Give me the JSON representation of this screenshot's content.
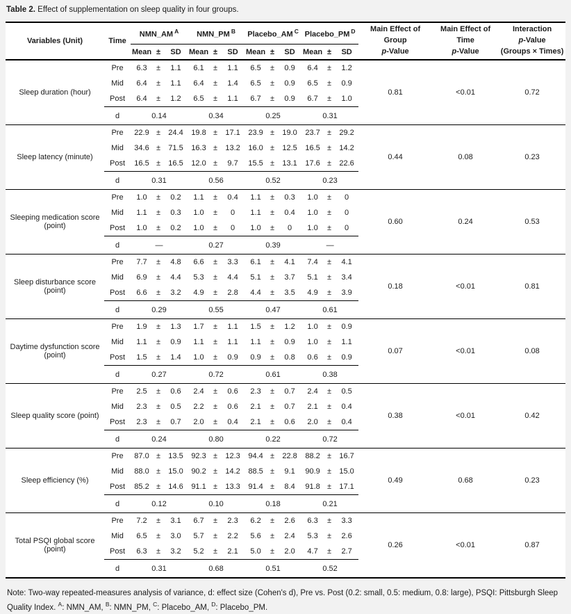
{
  "page": {
    "caption_label": "Table 2.",
    "caption_text": "Effect of supplementation on sleep quality in four groups."
  },
  "table": {
    "pm_symbol": "±",
    "d_label": "d",
    "header": {
      "variables": "Variables (Unit)",
      "time": "Time",
      "groups": [
        {
          "name": "NMN_AM",
          "sup": "A"
        },
        {
          "name": "NMN_PM",
          "sup": "B"
        },
        {
          "name": "Placebo_AM",
          "sup": "C"
        },
        {
          "name": "Placebo_PM",
          "sup": "D"
        }
      ],
      "sub": {
        "mean": "Mean",
        "pm": "±",
        "sd": "SD"
      },
      "stats": [
        {
          "title": "Main Effect of Group",
          "p": "p",
          "suffix": "-Value"
        },
        {
          "title": "Main Effect of Time",
          "p": "p",
          "suffix": "-Value"
        },
        {
          "title": "Interaction",
          "p": "p",
          "suffix": "-Value",
          "note": "(Groups × Times)"
        }
      ]
    },
    "variables": [
      {
        "name": "Sleep duration (hour)",
        "rows": [
          {
            "time": "Pre",
            "values": [
              [
                "6.3",
                "1.1"
              ],
              [
                "6.1",
                "1.1"
              ],
              [
                "6.5",
                "0.9"
              ],
              [
                "6.4",
                "1.2"
              ]
            ]
          },
          {
            "time": "Mid",
            "values": [
              [
                "6.4",
                "1.1"
              ],
              [
                "6.4",
                "1.4"
              ],
              [
                "6.5",
                "0.9"
              ],
              [
                "6.5",
                "0.9"
              ]
            ]
          },
          {
            "time": "Post",
            "values": [
              [
                "6.4",
                "1.2"
              ],
              [
                "6.5",
                "1.1"
              ],
              [
                "6.7",
                "0.9"
              ],
              [
                "6.7",
                "1.0"
              ]
            ]
          }
        ],
        "d": [
          "0.14",
          "0.34",
          "0.25",
          "0.31"
        ],
        "p_group": "0.81",
        "p_time": "<0.01",
        "p_interaction": "0.72"
      },
      {
        "name": "Sleep latency (minute)",
        "rows": [
          {
            "time": "Pre",
            "values": [
              [
                "22.9",
                "24.4"
              ],
              [
                "19.8",
                "17.1"
              ],
              [
                "23.9",
                "19.0"
              ],
              [
                "23.7",
                "29.2"
              ]
            ]
          },
          {
            "time": "Mid",
            "values": [
              [
                "34.6",
                "71.5"
              ],
              [
                "16.3",
                "13.2"
              ],
              [
                "16.0",
                "12.5"
              ],
              [
                "16.5",
                "14.2"
              ]
            ]
          },
          {
            "time": "Post",
            "values": [
              [
                "16.5",
                "16.5"
              ],
              [
                "12.0",
                "9.7"
              ],
              [
                "15.5",
                "13.1"
              ],
              [
                "17.6",
                "22.6"
              ]
            ]
          }
        ],
        "d": [
          "0.31",
          "0.56",
          "0.52",
          "0.23"
        ],
        "p_group": "0.44",
        "p_time": "0.08",
        "p_interaction": "0.23"
      },
      {
        "name": "Sleeping medication score (point)",
        "rows": [
          {
            "time": "Pre",
            "values": [
              [
                "1.0",
                "0.2"
              ],
              [
                "1.1",
                "0.4"
              ],
              [
                "1.1",
                "0.3"
              ],
              [
                "1.0",
                "0"
              ]
            ]
          },
          {
            "time": "Mid",
            "values": [
              [
                "1.1",
                "0.3"
              ],
              [
                "1.0",
                "0"
              ],
              [
                "1.1",
                "0.4"
              ],
              [
                "1.0",
                "0"
              ]
            ]
          },
          {
            "time": "Post",
            "values": [
              [
                "1.0",
                "0.2"
              ],
              [
                "1.0",
                "0"
              ],
              [
                "1.0",
                "0"
              ],
              [
                "1.0",
                "0"
              ]
            ]
          }
        ],
        "d": [
          "—",
          "0.27",
          "0.39",
          "—"
        ],
        "p_group": "0.60",
        "p_time": "0.24",
        "p_interaction": "0.53"
      },
      {
        "name": "Sleep disturbance score (point)",
        "rows": [
          {
            "time": "Pre",
            "values": [
              [
                "7.7",
                "4.8"
              ],
              [
                "6.6",
                "3.3"
              ],
              [
                "6.1",
                "4.1"
              ],
              [
                "7.4",
                "4.1"
              ]
            ]
          },
          {
            "time": "Mid",
            "values": [
              [
                "6.9",
                "4.4"
              ],
              [
                "5.3",
                "4.4"
              ],
              [
                "5.1",
                "3.7"
              ],
              [
                "5.1",
                "3.4"
              ]
            ]
          },
          {
            "time": "Post",
            "values": [
              [
                "6.6",
                "3.2"
              ],
              [
                "4.9",
                "2.8"
              ],
              [
                "4.4",
                "3.5"
              ],
              [
                "4.9",
                "3.9"
              ]
            ]
          }
        ],
        "d": [
          "0.29",
          "0.55",
          "0.47",
          "0.61"
        ],
        "p_group": "0.18",
        "p_time": "<0.01",
        "p_interaction": "0.81"
      },
      {
        "name": "Daytime dysfunction score (point)",
        "rows": [
          {
            "time": "Pre",
            "values": [
              [
                "1.9",
                "1.3"
              ],
              [
                "1.7",
                "1.1"
              ],
              [
                "1.5",
                "1.2"
              ],
              [
                "1.0",
                "0.9"
              ]
            ]
          },
          {
            "time": "Mid",
            "values": [
              [
                "1.1",
                "0.9"
              ],
              [
                "1.1",
                "1.1"
              ],
              [
                "1.1",
                "0.9"
              ],
              [
                "1.0",
                "1.1"
              ]
            ]
          },
          {
            "time": "Post",
            "values": [
              [
                "1.5",
                "1.4"
              ],
              [
                "1.0",
                "0.9"
              ],
              [
                "0.9",
                "0.8"
              ],
              [
                "0.6",
                "0.9"
              ]
            ]
          }
        ],
        "d": [
          "0.27",
          "0.72",
          "0.61",
          "0.38"
        ],
        "p_group": "0.07",
        "p_time": "<0.01",
        "p_interaction": "0.08"
      },
      {
        "name": "Sleep quality score (point)",
        "rows": [
          {
            "time": "Pre",
            "values": [
              [
                "2.5",
                "0.6"
              ],
              [
                "2.4",
                "0.6"
              ],
              [
                "2.3",
                "0.7"
              ],
              [
                "2.4",
                "0.5"
              ]
            ]
          },
          {
            "time": "Mid",
            "values": [
              [
                "2.3",
                "0.5"
              ],
              [
                "2.2",
                "0.6"
              ],
              [
                "2.1",
                "0.7"
              ],
              [
                "2.1",
                "0.4"
              ]
            ]
          },
          {
            "time": "Post",
            "values": [
              [
                "2.3",
                "0.7"
              ],
              [
                "2.0",
                "0.4"
              ],
              [
                "2.1",
                "0.6"
              ],
              [
                "2.0",
                "0.4"
              ]
            ]
          }
        ],
        "d": [
          "0.24",
          "0.80",
          "0.22",
          "0.72"
        ],
        "p_group": "0.38",
        "p_time": "<0.01",
        "p_interaction": "0.42"
      },
      {
        "name": "Sleep efficiency (%)",
        "rows": [
          {
            "time": "Pre",
            "values": [
              [
                "87.0",
                "13.5"
              ],
              [
                "92.3",
                "12.3"
              ],
              [
                "94.4",
                "22.8"
              ],
              [
                "88.2",
                "16.7"
              ]
            ]
          },
          {
            "time": "Mid",
            "values": [
              [
                "88.0",
                "15.0"
              ],
              [
                "90.2",
                "14.2"
              ],
              [
                "88.5",
                "9.1"
              ],
              [
                "90.9",
                "15.0"
              ]
            ]
          },
          {
            "time": "Post",
            "values": [
              [
                "85.2",
                "14.6"
              ],
              [
                "91.1",
                "13.3"
              ],
              [
                "91.4",
                "8.4"
              ],
              [
                "91.8",
                "17.1"
              ]
            ]
          }
        ],
        "d": [
          "0.12",
          "0.10",
          "0.18",
          "0.21"
        ],
        "p_group": "0.49",
        "p_time": "0.68",
        "p_interaction": "0.23"
      },
      {
        "name": "Total PSQI global score (point)",
        "rows": [
          {
            "time": "Pre",
            "values": [
              [
                "7.2",
                "3.1"
              ],
              [
                "6.7",
                "2.3"
              ],
              [
                "6.2",
                "2.6"
              ],
              [
                "6.3",
                "3.3"
              ]
            ]
          },
          {
            "time": "Mid",
            "values": [
              [
                "6.5",
                "3.0"
              ],
              [
                "5.7",
                "2.2"
              ],
              [
                "5.6",
                "2.4"
              ],
              [
                "5.3",
                "2.6"
              ]
            ]
          },
          {
            "time": "Post",
            "values": [
              [
                "6.3",
                "3.2"
              ],
              [
                "5.2",
                "2.1"
              ],
              [
                "5.0",
                "2.0"
              ],
              [
                "4.7",
                "2.7"
              ]
            ]
          }
        ],
        "d": [
          "0.31",
          "0.68",
          "0.51",
          "0.52"
        ],
        "p_group": "0.26",
        "p_time": "<0.01",
        "p_interaction": "0.87"
      }
    ]
  },
  "note": {
    "segments": [
      {
        "text": "Note: Two-way repeated-measures analysis of variance, d: effect size (Cohen's d), Pre vs. Post (0.2: small, 0.5: medium, 0.8: large), PSQI: Pittsburgh Sleep Quality Index. "
      },
      {
        "sup": "A"
      },
      {
        "text": ": NMN_AM, "
      },
      {
        "sup": "B"
      },
      {
        "text": ": NMN_PM, "
      },
      {
        "sup": "C"
      },
      {
        "text": ": Placebo_AM, "
      },
      {
        "sup": "D"
      },
      {
        "text": ": Placebo_PM."
      }
    ]
  }
}
